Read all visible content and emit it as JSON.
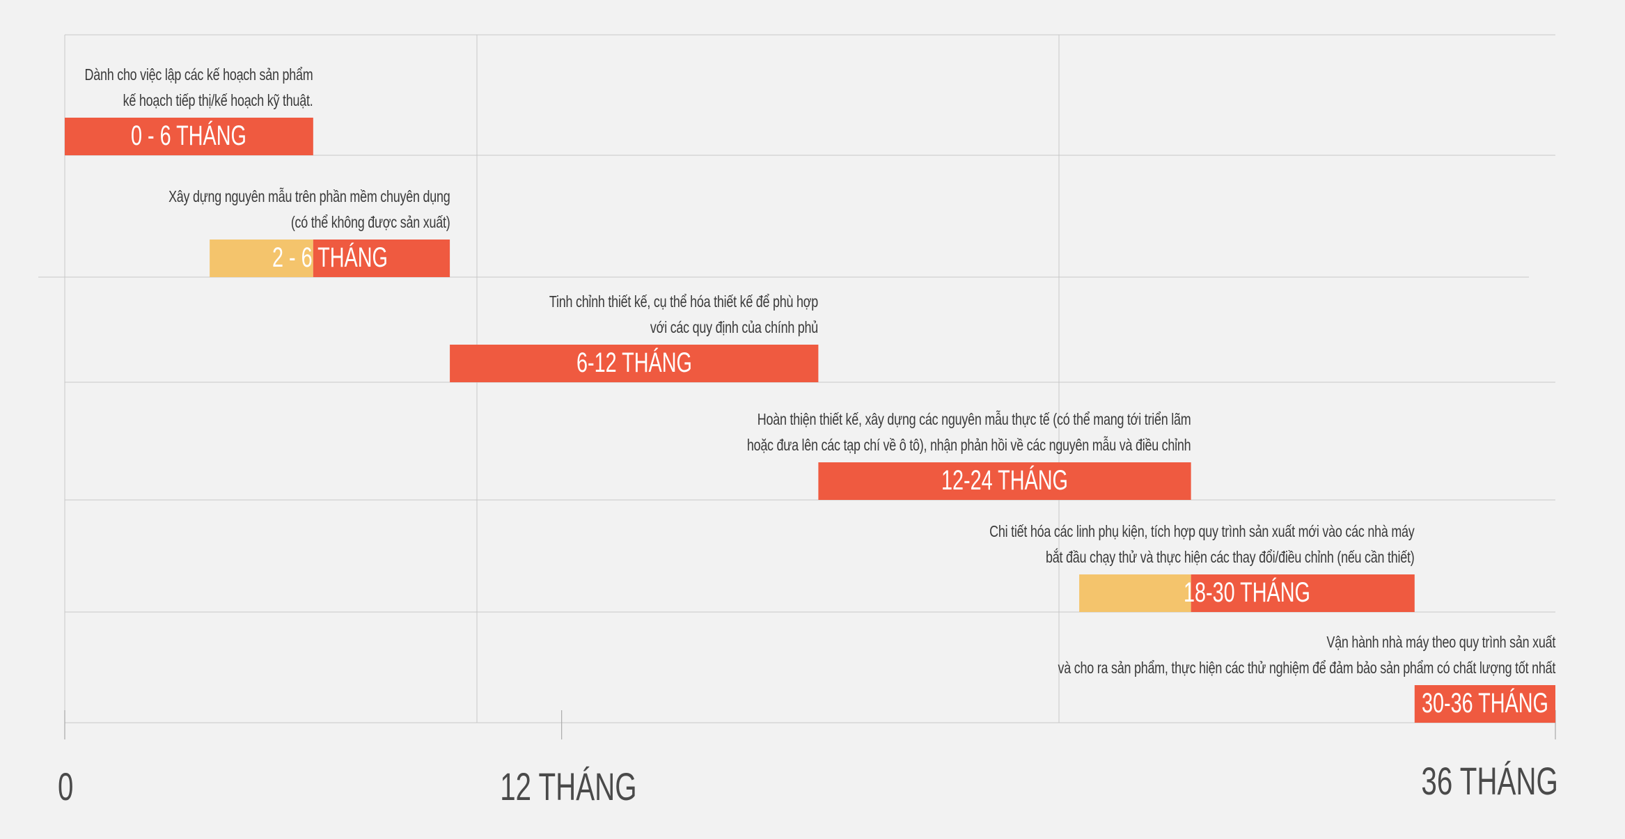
{
  "chart_data": {
    "type": "gantt",
    "x_unit": "months",
    "x_range": [
      0,
      36
    ],
    "ticks": [
      {
        "value": 0,
        "label": "0"
      },
      {
        "value": 12,
        "label": "12 THÁNG"
      },
      {
        "value": 36,
        "label": "36 THÁNG"
      }
    ],
    "colors": {
      "bar": "#ef5a40",
      "pre_bar": "#f4c46c",
      "grid": "#c8c8c8",
      "axis": "#aaaaaa"
    },
    "tasks": [
      {
        "label": "0 - 6 THÁNG",
        "start": 0,
        "end": 6,
        "pre_start": null,
        "desc": [
          "Dành cho việc lập các kế hoạch sản phẩm",
          "kế hoạch tiếp thị/kế hoạch kỹ thuật."
        ]
      },
      {
        "label": "2 - 6 THÁNG",
        "start": 6,
        "end": 9.3,
        "pre_start": 3.5,
        "desc": [
          "Xây dựng nguyên mẫu trên phần mềm chuyên dụng",
          "(có thể không được sản xuất)"
        ]
      },
      {
        "label": "6-12 THÁNG",
        "start": 9.3,
        "end": 18.2,
        "pre_start": null,
        "desc": [
          "Tinh chỉnh thiết kế, cụ thể hóa thiết kế để phù hợp",
          "với các quy định của chính phủ"
        ]
      },
      {
        "label": "12-24 THÁNG",
        "start": 18.2,
        "end": 27.2,
        "pre_start": null,
        "desc": [
          "Hoàn thiện thiết kế, xây dựng các nguyên mẫu thực tế (có thể mang tới triển lãm",
          "hoặc đưa lên các tạp chí về ô tô), nhận phản hồi về các nguyên mẫu và điều chỉnh"
        ]
      },
      {
        "label": "18-30 THÁNG",
        "start": 27.2,
        "end": 32.6,
        "pre_start": 24.5,
        "desc": [
          "Chi tiết hóa các linh phụ kiện, tích hợp quy trình sản xuất mới vào các nhà máy",
          "bắt đầu chạy thử và thực hiện các thay đổi/điều chỉnh (nếu cần thiết)"
        ]
      },
      {
        "label": "30-36 THÁNG",
        "start": 32.6,
        "end": 36,
        "pre_start": null,
        "desc": [
          "Vận hành nhà máy theo quy trình sản xuất",
          "và cho ra sản phẩm, thực hiện các thử nghiệm để đảm bảo sản phẩm có chất lượng tốt nhất"
        ]
      }
    ]
  }
}
